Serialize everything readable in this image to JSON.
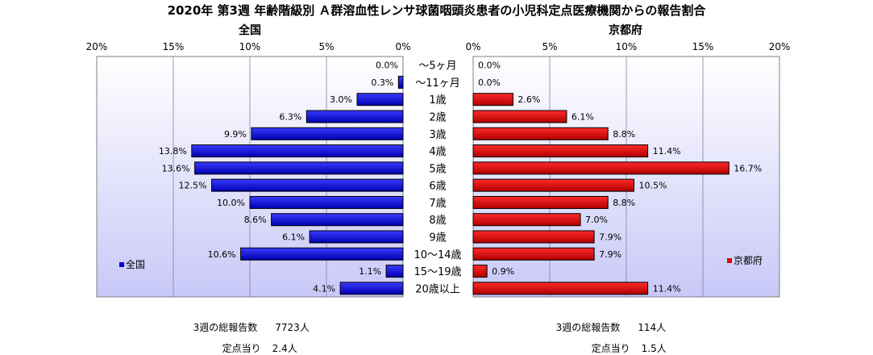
{
  "title": "2020年 第3週 年齢階級別 Ａ群溶血性レンサ球菌咽頭炎患者の小児科定点医療機関からの報告割合",
  "chart_data": {
    "type": "bar",
    "orientation": "horizontal-mirrored",
    "categories": [
      "～5ヶ月",
      "～11ヶ月",
      "1歳",
      "2歳",
      "3歳",
      "4歳",
      "5歳",
      "6歳",
      "7歳",
      "8歳",
      "9歳",
      "10～14歳",
      "15～19歳",
      "20歳以上"
    ],
    "left": {
      "title": "全国",
      "legend": "全国",
      "legend_position": "bottom-left",
      "color": "#0000dd",
      "values": [
        0.0,
        0.3,
        3.0,
        6.3,
        9.9,
        13.8,
        13.6,
        12.5,
        10.0,
        8.6,
        6.1,
        10.6,
        1.1,
        4.1
      ],
      "ticks": [
        "20%",
        "15%",
        "10%",
        "5%",
        "0%"
      ],
      "xlim": [
        0,
        20
      ]
    },
    "right": {
      "title": "京都府",
      "legend": "京都府",
      "legend_position": "bottom-right",
      "color": "#dd0000",
      "values": [
        0.0,
        0.0,
        2.6,
        6.1,
        8.8,
        11.4,
        16.7,
        10.5,
        8.8,
        7.0,
        7.9,
        7.9,
        0.9,
        11.4
      ],
      "ticks": [
        "0%",
        "5%",
        "10%",
        "15%",
        "20%"
      ],
      "xlim": [
        0,
        20
      ]
    },
    "grid": true,
    "value_format": "1 decimal + %"
  },
  "footer": {
    "left_total_label": "3週の総報告数",
    "left_total_value": "7723人",
    "left_per_label": "定点当り",
    "left_per_value": "2.4人",
    "right_total_label": "3週の総報告数",
    "right_total_value": "114人",
    "right_per_label": "定点当り",
    "right_per_value": "1.5人"
  }
}
